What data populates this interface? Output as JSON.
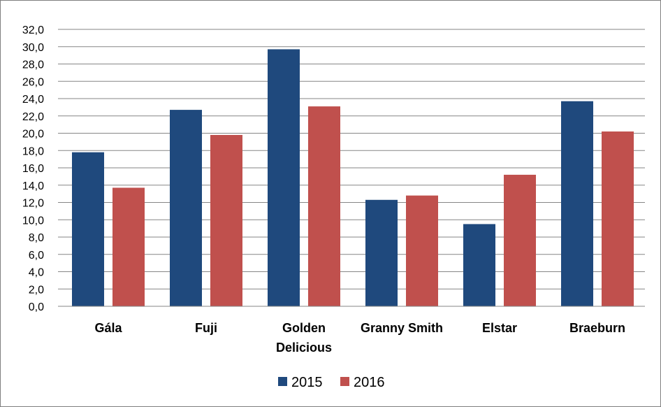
{
  "chart_data": {
    "type": "bar",
    "categories": [
      [
        "Gála"
      ],
      [
        "Fuji"
      ],
      [
        "Golden",
        "Delicious"
      ],
      [
        "Granny Smith"
      ],
      [
        "Elstar"
      ],
      [
        "Braeburn"
      ]
    ],
    "series": [
      {
        "name": "2015",
        "color": "#1f497d",
        "values": [
          17.8,
          22.7,
          29.7,
          12.3,
          9.5,
          23.7
        ]
      },
      {
        "name": "2016",
        "color": "#c0504d",
        "values": [
          13.7,
          19.8,
          23.1,
          12.8,
          15.2,
          20.2
        ]
      }
    ],
    "y_ticks": [
      "0,0",
      "2,0",
      "4,0",
      "6,0",
      "8,0",
      "10,0",
      "12,0",
      "14,0",
      "16,0",
      "18,0",
      "20,0",
      "22,0",
      "24,0",
      "26,0",
      "28,0",
      "30,0",
      "32,0"
    ],
    "ylim": [
      0,
      32
    ],
    "y_step": 2,
    "grid": true,
    "legend_position": "bottom",
    "title": "",
    "xlabel": "",
    "ylabel": ""
  }
}
